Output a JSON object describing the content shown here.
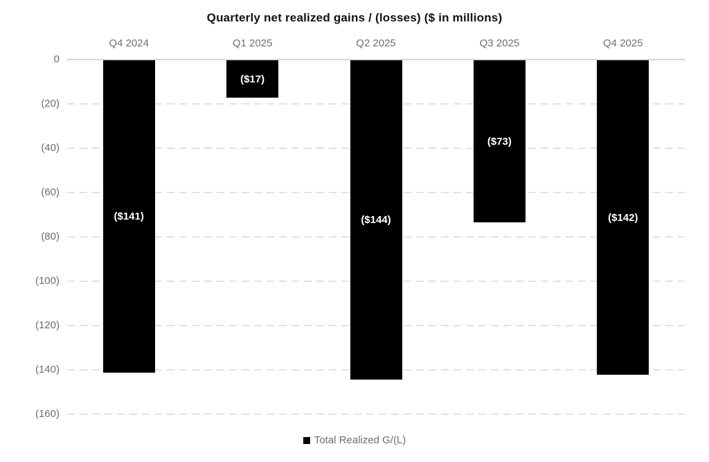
{
  "title": "Quarterly net realized gains / (losses) ($ in millions)",
  "legend": {
    "label": "Total Realized G/(L)",
    "marker_color": "#000000",
    "position": "bottom"
  },
  "colors": {
    "bar": "#000000",
    "bar_label_text": "#ffffff",
    "axis_text": "#6e6e6e",
    "title_text": "#111111",
    "gridline": "#e2e2e2",
    "zero_line": "#d6d6d6",
    "background": "#ffffff"
  },
  "chart_data": {
    "type": "bar",
    "title": "Quarterly net realized gains / (losses) ($ in millions)",
    "categories": [
      "Q4 2024",
      "Q1 2025",
      "Q2 2025",
      "Q3 2025",
      "Q4 2025"
    ],
    "series": [
      {
        "name": "Total Realized G/(L)",
        "values": [
          -141,
          -17,
          -144,
          -73,
          -142
        ],
        "labels": [
          "($141)",
          "($17)",
          "($144)",
          "($73)",
          "($142)"
        ],
        "color": "#000000"
      }
    ],
    "xlabel": "",
    "ylabel": "",
    "ylim": [
      -160,
      0
    ],
    "yticks": [
      0,
      -20,
      -40,
      -60,
      -80,
      -100,
      -120,
      -140,
      -160
    ],
    "ytick_labels": [
      "0",
      "(20)",
      "(40)",
      "(60)",
      "(80)",
      "(100)",
      "(120)",
      "(140)",
      "(160)"
    ],
    "category_axis_position": "top",
    "grid": "horizontal-dashed",
    "zero_line": "solid",
    "legend_position": "bottom-center",
    "bar_label_placement": "inside-center"
  }
}
